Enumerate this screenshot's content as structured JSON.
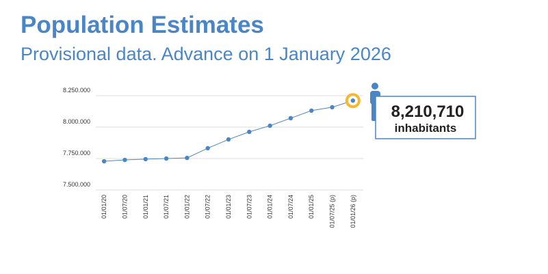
{
  "chart_data": {
    "type": "line",
    "title": "Population Estimates",
    "subtitle": "Provisional data. Advance on 1 January 2026",
    "categories": [
      "01/01/20",
      "01/07/20",
      "01/01/21",
      "01/07/21",
      "01/01/22",
      "01/07/22",
      "01/01/23",
      "01/07/23",
      "01/01/24",
      "01/07/24",
      "01/01/25",
      "01/07/25 (p)",
      "01/01/26 (p)"
    ],
    "series": [
      {
        "color": "#4a86c5",
        "values": [
          7728000,
          7739000,
          7745000,
          7750000,
          7755000,
          7832000,
          7902000,
          7962000,
          8011000,
          8071000,
          8131000,
          8158000,
          8210710
        ],
        "value_labels": [
          null,
          null,
          null,
          null,
          null,
          null,
          null,
          null,
          null,
          null,
          null,
          null,
          "8,210,710"
        ]
      }
    ],
    "annotation": "inhabitants",
    "highlight_color": "#f5b82e",
    "ylim": [
      7500000,
      8250000
    ],
    "yticks": [
      {
        "value": 7500000,
        "label": "7.500.000"
      },
      {
        "value": 7750000,
        "label": "7.750.000"
      },
      {
        "value": 8000000,
        "label": "8.000.000"
      },
      {
        "value": 8250000,
        "label": "8.250.000"
      }
    ],
    "grid": true
  }
}
